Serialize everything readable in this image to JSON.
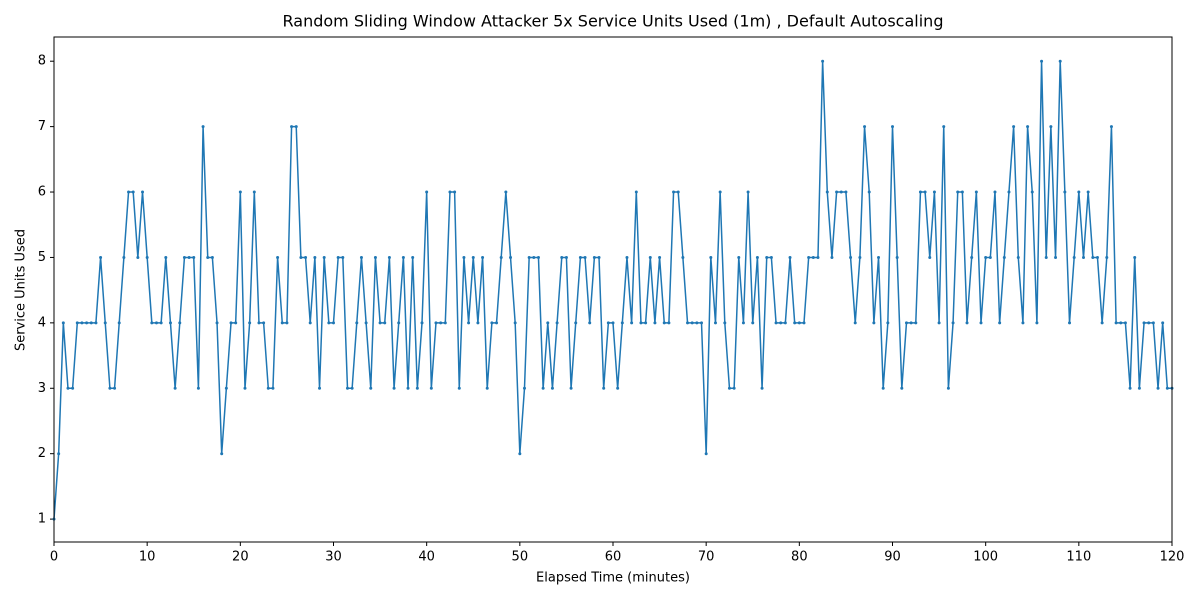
{
  "chart_data": {
    "type": "line",
    "title": "Random Sliding Window Attacker 5x Service Units Used (1m) , Default Autoscaling",
    "x_label": "Elapsed Time (minutes)",
    "y_label": "Service Units Used",
    "xlim": [
      0,
      120
    ],
    "ylim": [
      0.65,
      8.37
    ],
    "xticks": [
      0,
      10,
      20,
      30,
      40,
      50,
      60,
      70,
      80,
      90,
      100,
      110,
      120
    ],
    "yticks": [
      1,
      2,
      3,
      4,
      5,
      6,
      7,
      8
    ],
    "grid": false,
    "series": [
      {
        "color": "#1f77b4",
        "x": [
          0,
          0.5,
          1,
          1.5,
          2,
          2.5,
          3,
          3.5,
          4,
          4.5,
          5,
          5.5,
          6,
          6.5,
          7,
          7.5,
          8,
          8.5,
          9,
          9.5,
          10,
          10.5,
          11,
          11.5,
          12,
          12.5,
          13,
          13.5,
          14,
          14.5,
          15,
          15.5,
          16,
          16.5,
          17,
          17.5,
          18,
          18.5,
          19,
          19.5,
          20,
          20.5,
          21,
          21.5,
          22,
          22.5,
          23,
          23.5,
          24,
          24.5,
          25,
          25.5,
          26,
          26.5,
          27,
          27.5,
          28,
          28.5,
          29,
          29.5,
          30,
          30.5,
          31,
          31.5,
          32,
          32.5,
          33,
          33.5,
          34,
          34.5,
          35,
          35.5,
          36,
          36.5,
          37,
          37.5,
          38,
          38.5,
          39,
          39.5,
          40,
          40.5,
          41,
          41.5,
          42,
          42.5,
          43,
          43.5,
          44,
          44.5,
          45,
          45.5,
          46,
          46.5,
          47,
          47.5,
          48,
          48.5,
          49,
          49.5,
          50,
          50.5,
          51,
          51.5,
          52,
          52.5,
          53,
          53.5,
          54,
          54.5,
          55,
          55.5,
          56,
          56.5,
          57,
          57.5,
          58,
          58.5,
          59,
          59.5,
          60,
          60.5,
          61,
          61.5,
          62,
          62.5,
          63,
          63.5,
          64,
          64.5,
          65,
          65.5,
          66,
          66.5,
          67,
          67.5,
          68,
          68.5,
          69,
          69.5,
          70,
          70.5,
          71,
          71.5,
          72,
          72.5,
          73,
          73.5,
          74,
          74.5,
          75,
          75.5,
          76,
          76.5,
          77,
          77.5,
          78,
          78.5,
          79,
          79.5,
          80,
          80.5,
          81,
          81.5,
          82,
          82.5,
          83,
          83.5,
          84,
          84.5,
          85,
          85.5,
          86,
          86.5,
          87,
          87.5,
          88,
          88.5,
          89,
          89.5,
          90,
          90.5,
          91,
          91.5,
          92,
          92.5,
          93,
          93.5,
          94,
          94.5,
          95,
          95.5,
          96,
          96.5,
          97,
          97.5,
          98,
          98.5,
          99,
          99.5,
          100,
          100.5,
          101,
          101.5,
          102,
          102.5,
          103,
          103.5,
          104,
          104.5,
          105,
          105.5,
          106,
          106.5,
          107,
          107.5,
          108,
          108.5,
          109,
          109.5,
          110,
          110.5,
          111,
          111.5,
          112,
          112.5,
          113,
          113.5,
          114,
          114.5,
          115,
          115.5,
          116,
          116.5,
          117,
          117.5,
          118,
          118.5,
          119,
          119.5,
          120
        ],
        "values": [
          1,
          2,
          4,
          3,
          3,
          4,
          4,
          4,
          4,
          4,
          5,
          4,
          3,
          3,
          4,
          5,
          6,
          6,
          5,
          6,
          5,
          4,
          4,
          4,
          5,
          4,
          3,
          4,
          5,
          5,
          5,
          3,
          7,
          5,
          5,
          4,
          2,
          3,
          4,
          4,
          6,
          3,
          4,
          6,
          4,
          4,
          3,
          3,
          5,
          4,
          4,
          7,
          7,
          5,
          5,
          4,
          5,
          3,
          5,
          4,
          4,
          5,
          5,
          3,
          3,
          4,
          5,
          4,
          3,
          5,
          4,
          4,
          5,
          3,
          4,
          5,
          3,
          5,
          3,
          4,
          6,
          3,
          4,
          4,
          4,
          6,
          6,
          3,
          5,
          4,
          5,
          4,
          5,
          3,
          4,
          4,
          5,
          6,
          5,
          4,
          2,
          3,
          5,
          5,
          5,
          3,
          4,
          3,
          4,
          5,
          5,
          3,
          4,
          5,
          5,
          4,
          5,
          5,
          3,
          4,
          4,
          3,
          4,
          5,
          4,
          6,
          4,
          4,
          5,
          4,
          5,
          4,
          4,
          6,
          6,
          5,
          4,
          4,
          4,
          4,
          2,
          5,
          4,
          6,
          4,
          3,
          3,
          5,
          4,
          6,
          4,
          5,
          3,
          5,
          5,
          4,
          4,
          4,
          5,
          4,
          4,
          4,
          5,
          5,
          5,
          8,
          6,
          5,
          6,
          6,
          6,
          5,
          4,
          5,
          7,
          6,
          4,
          5,
          3,
          4,
          7,
          5,
          3,
          4,
          4,
          4,
          6,
          6,
          5,
          6,
          4,
          7,
          3,
          4,
          6,
          6,
          4,
          5,
          6,
          4,
          5,
          5,
          6,
          4,
          5,
          6,
          7,
          5,
          4,
          7,
          6,
          4,
          8,
          5,
          7,
          5,
          8,
          6,
          4,
          5,
          6,
          5,
          6,
          5,
          5,
          4,
          5,
          7,
          4,
          4,
          4,
          3,
          5,
          3,
          4,
          4,
          4,
          3,
          4,
          3,
          3
        ]
      }
    ]
  }
}
